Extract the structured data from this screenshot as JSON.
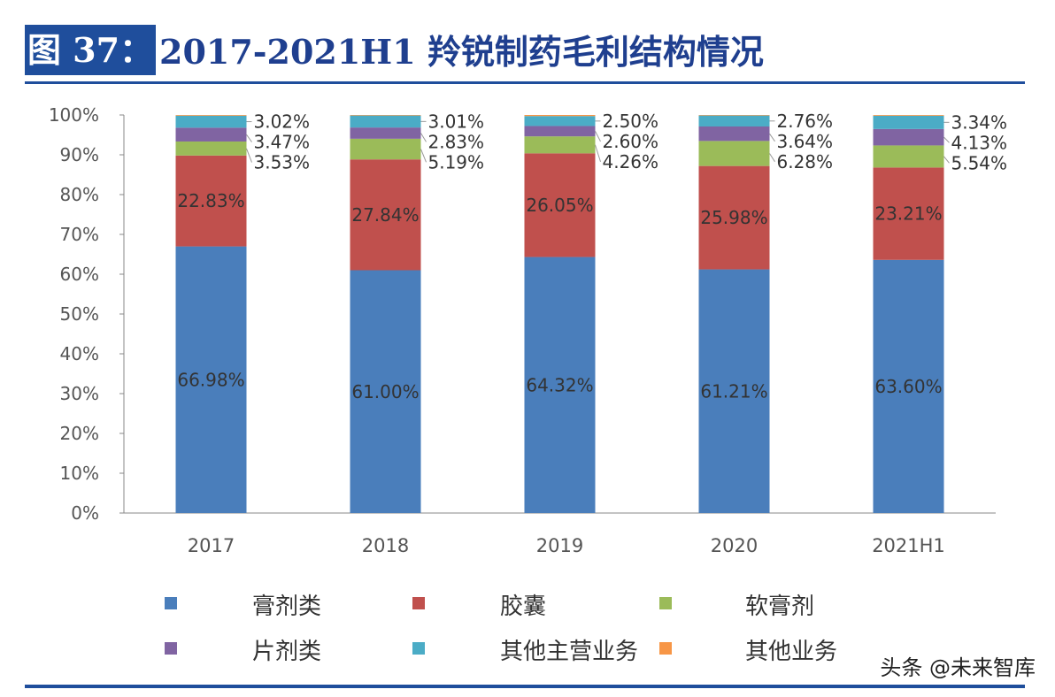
{
  "figure": {
    "label": "图 37：",
    "title": "2017-2021H1 羚锐制药毛利结构情况"
  },
  "watermark": "头条 @未来智库",
  "chart_data": {
    "type": "bar",
    "stacked": true,
    "title": "",
    "xlabel": "",
    "ylabel": "",
    "ylim": [
      0,
      100
    ],
    "yticks": [
      "0%",
      "10%",
      "20%",
      "30%",
      "40%",
      "50%",
      "60%",
      "70%",
      "80%",
      "90%",
      "100%"
    ],
    "categories": [
      "2017",
      "2018",
      "2019",
      "2020",
      "2021H1"
    ],
    "legend_position": "bottom",
    "grid": false,
    "series": [
      {
        "name": "膏剂类",
        "color": "#4a7ebb",
        "values": [
          66.98,
          61.0,
          64.32,
          61.21,
          63.6
        ],
        "labels": [
          "66.98%",
          "61.00%",
          "64.32%",
          "61.21%",
          "63.60%"
        ]
      },
      {
        "name": "胶囊",
        "color": "#c0504d",
        "values": [
          22.83,
          27.84,
          26.05,
          25.98,
          23.21
        ],
        "labels": [
          "22.83%",
          "27.84%",
          "26.05%",
          "25.98%",
          "23.21%"
        ]
      },
      {
        "name": "软膏剂",
        "color": "#9bbb59",
        "values": [
          3.53,
          5.19,
          4.26,
          6.28,
          5.54
        ],
        "labels": [
          "3.53%",
          "5.19%",
          "4.26%",
          "6.28%",
          "5.54%"
        ]
      },
      {
        "name": "片剂类",
        "color": "#8064a2",
        "values": [
          3.47,
          2.83,
          2.6,
          3.64,
          4.13
        ],
        "labels": [
          "3.47%",
          "2.83%",
          "2.60%",
          "3.64%",
          "4.13%"
        ]
      },
      {
        "name": "其他主营业务",
        "color": "#4bacc6",
        "values": [
          3.02,
          3.01,
          2.5,
          2.76,
          3.34
        ],
        "labels": [
          "3.02%",
          "3.01%",
          "2.50%",
          "2.76%",
          "3.34%"
        ]
      },
      {
        "name": "其他业务",
        "color": "#f79646",
        "values": [
          0.17,
          0.13,
          0.27,
          0.13,
          0.18
        ],
        "labels": [
          "",
          "",
          "",
          "",
          ""
        ]
      }
    ]
  }
}
